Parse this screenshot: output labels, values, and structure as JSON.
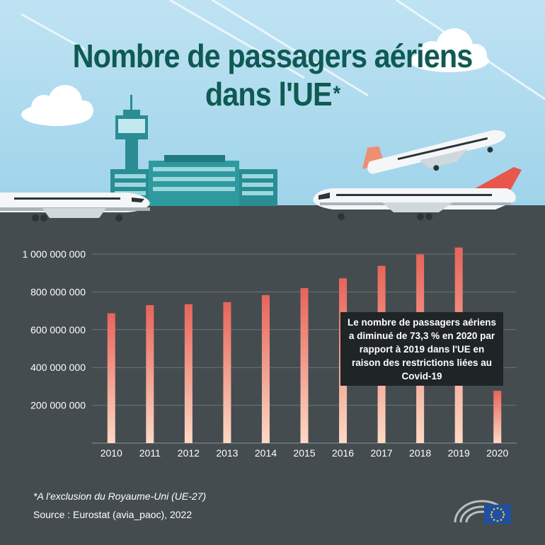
{
  "title": {
    "line1": "Nombre de passagers aériens",
    "line2": "dans l'UE",
    "mark": "*"
  },
  "annotation": "Le nombre de passagers aériens a diminué de 73,3 % en 2020 par rapport à 2019 dans l'UE en raison des restrictions liées au Covid-19",
  "footnote": "*A l'exclusion du Royaume-Uni (UE-27)",
  "source": "Source : Eurostat (avia_paoc), 2022",
  "colors": {
    "sky": "#a9d8ee",
    "ground": "#444c50",
    "title": "#0f5a52",
    "bar_top": "#e8645a",
    "bar_bottom": "#fcd9c4",
    "annotation_bg": "#1f2426"
  },
  "icons": [
    "cloud-icon",
    "control-tower-icon",
    "terminal-building-icon",
    "airplane-icon",
    "european-parliament-logo",
    "eu-flag-icon"
  ],
  "chart_data": {
    "type": "bar",
    "categories": [
      "2010",
      "2011",
      "2012",
      "2013",
      "2014",
      "2015",
      "2016",
      "2017",
      "2018",
      "2019",
      "2020"
    ],
    "values": [
      687000000,
      730000000,
      735000000,
      746000000,
      783000000,
      820000000,
      872000000,
      938000000,
      998000000,
      1035000000,
      277000000
    ],
    "yticks": [
      200000000,
      400000000,
      600000000,
      800000000,
      1000000000
    ],
    "ytick_labels": [
      "200 000 000",
      "400 000 000",
      "600 000 000",
      "800 000 000",
      "1 000 000 000"
    ],
    "ylim": [
      0,
      1000000000
    ],
    "grid": true,
    "xlabel": "",
    "ylabel": ""
  }
}
